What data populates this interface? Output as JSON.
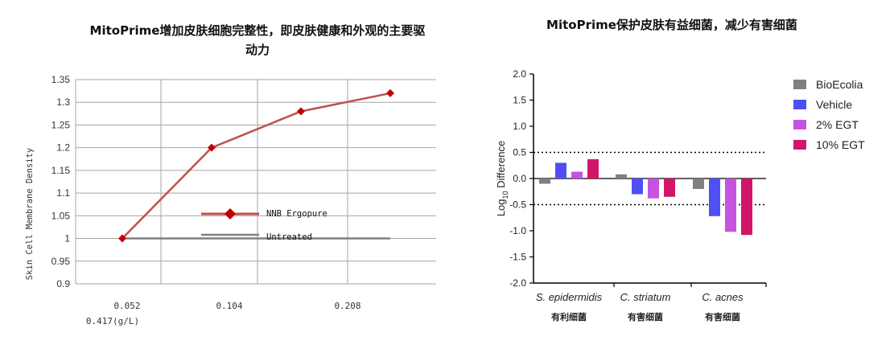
{
  "chart_data": [
    {
      "type": "line",
      "title": "MitoPrime增加皮肤细胞完整性，即皮肤健康和外观的主要驱动力",
      "ylabel": "Skin Cell Membrane Density",
      "xlabel": "",
      "x_tick_labels": [
        "0.052",
        "0.104",
        "0.208",
        "0.417(g/L)"
      ],
      "ylim": [
        0.9,
        1.35
      ],
      "y_ticks": [
        "0.9",
        "0.95",
        "1",
        "1.05",
        "1.1",
        "1.15",
        "1.2",
        "1.25",
        "1.3",
        "1.35"
      ],
      "grid": true,
      "legend_position": "center",
      "series": [
        {
          "name": "NNB Ergopure",
          "color": "#c0504d",
          "marker": "diamond",
          "values": [
            1.0,
            1.2,
            1.28,
            1.32
          ]
        },
        {
          "name": "Untreated",
          "color": "#808080",
          "marker": "none",
          "values": [
            1.0,
            1.0,
            1.0,
            1.0
          ]
        }
      ]
    },
    {
      "type": "bar",
      "title": "MitoPrime保护皮肤有益细菌，减少有害细菌",
      "ylabel": "Log10 Difference",
      "ylim": [
        -2.0,
        2.0
      ],
      "y_ticks": [
        "2.0",
        "1.5",
        "1.0",
        "0.5",
        "0.0",
        "-0.5",
        "-1.0",
        "-1.5",
        "-2.0"
      ],
      "reference_lines": [
        0.5,
        -0.5
      ],
      "legend_position": "right",
      "categories": [
        {
          "name": "S. epidermidis",
          "sub": "有利细菌"
        },
        {
          "name": "C. striatum",
          "sub": "有害细菌"
        },
        {
          "name": "C. acnes",
          "sub": "有害细菌"
        }
      ],
      "series": [
        {
          "name": "BioEcolia",
          "color": "#808080",
          "values": [
            -0.1,
            0.08,
            -0.2
          ]
        },
        {
          "name": "Vehicle",
          "color": "#4f4ff5",
          "values": [
            0.3,
            -0.3,
            -0.72
          ]
        },
        {
          "name": "2% EGT",
          "color": "#c553e0",
          "values": [
            0.13,
            -0.38,
            -1.02
          ]
        },
        {
          "name": "10% EGT",
          "color": "#d3156a",
          "values": [
            0.37,
            -0.35,
            -1.08
          ]
        }
      ]
    }
  ]
}
